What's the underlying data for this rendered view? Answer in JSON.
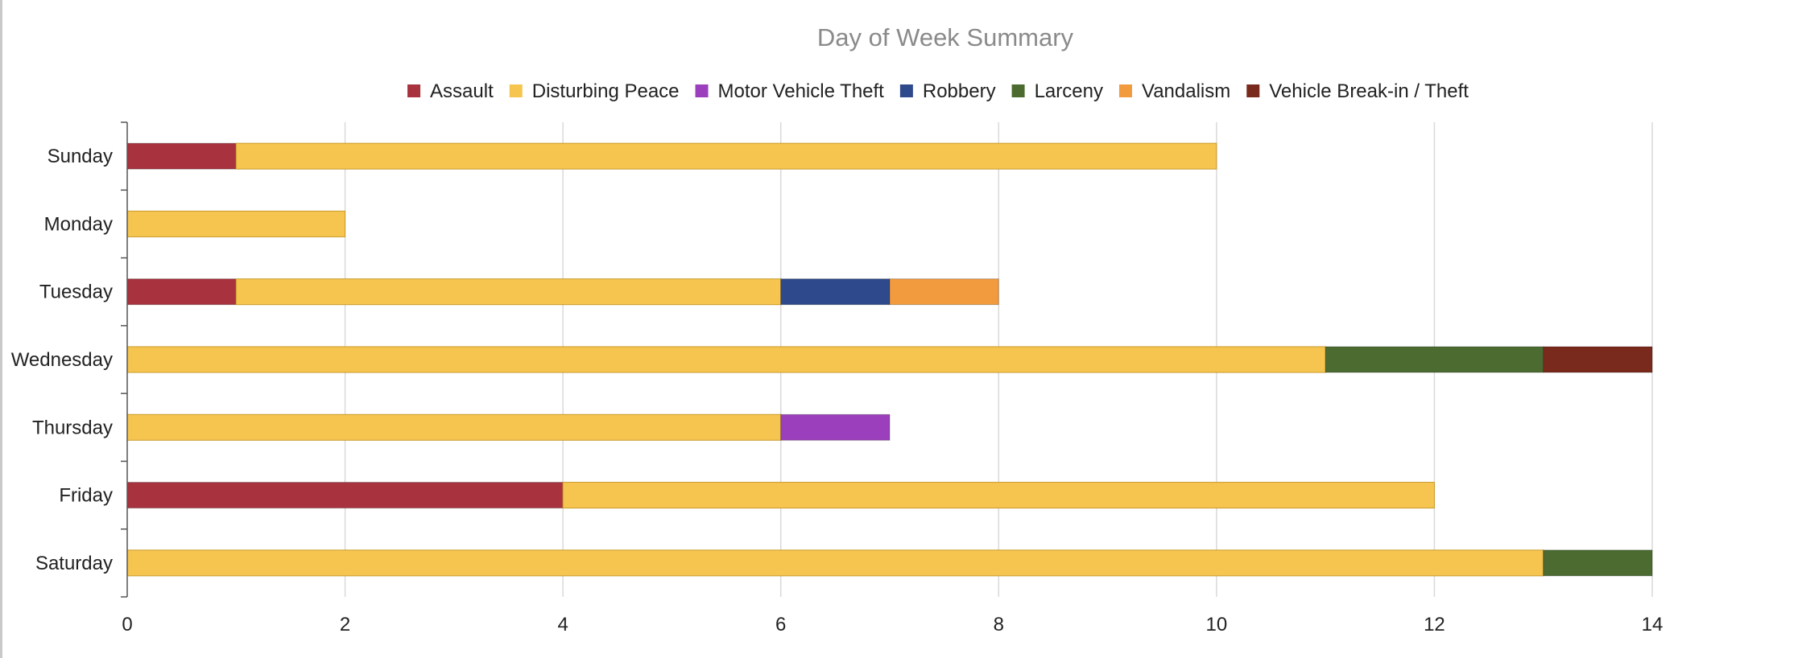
{
  "chart_data": {
    "type": "bar",
    "orientation": "horizontal",
    "stacked": true,
    "title": "Day of Week Summary",
    "legend_position": "top",
    "grid": true,
    "categories": [
      "Sunday",
      "Monday",
      "Tuesday",
      "Wednesday",
      "Thursday",
      "Friday",
      "Saturday"
    ],
    "xlim": [
      0,
      14
    ],
    "x_ticks": [
      0,
      2,
      4,
      6,
      8,
      10,
      12,
      14
    ],
    "series": [
      {
        "name": "Assault",
        "color": "#a8323d",
        "values": [
          1,
          0,
          1,
          0,
          0,
          4,
          0
        ]
      },
      {
        "name": "Disturbing Peace",
        "color": "#f5c550",
        "values": [
          9,
          2,
          5,
          11,
          6,
          8,
          13
        ]
      },
      {
        "name": "Motor Vehicle Theft",
        "color": "#9b3fbc",
        "values": [
          0,
          0,
          0,
          0,
          1,
          0,
          0
        ]
      },
      {
        "name": "Robbery",
        "color": "#2e4a8c",
        "values": [
          0,
          0,
          1,
          0,
          0,
          0,
          0
        ]
      },
      {
        "name": "Larceny",
        "color": "#4b6b30",
        "values": [
          0,
          0,
          0,
          2,
          0,
          0,
          1
        ]
      },
      {
        "name": "Vandalism",
        "color": "#f29b3e",
        "values": [
          0,
          0,
          1,
          0,
          0,
          0,
          0
        ]
      },
      {
        "name": "Vehicle Break-in / Theft",
        "color": "#7a2a1c",
        "values": [
          0,
          0,
          0,
          1,
          0,
          0,
          0
        ]
      }
    ]
  }
}
